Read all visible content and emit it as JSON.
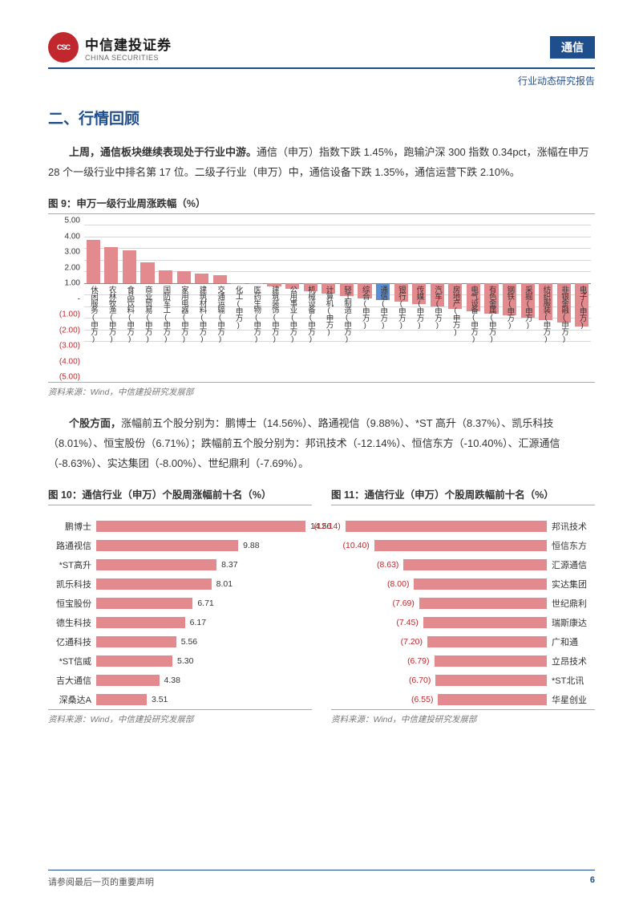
{
  "header": {
    "logo_cn": "中信建投证券",
    "logo_en": "CHINA SECURITIES",
    "tag": "通信",
    "subtitle": "行业动态研究报告"
  },
  "section_title": "二、行情回顾",
  "para1": {
    "bold": "上周，通信板块继续表现处于行业中游。",
    "rest": "通信（申万）指数下跌 1.45%，跑输沪深 300 指数 0.34pct，涨幅在申万 28 个一级行业中排名第 17 位。二级子行业（申万）中，通信设备下跌 1.35%，通信运营下跌 2.10%。"
  },
  "fig9": {
    "title": "图 9：申万一级行业周涨跌幅（%）",
    "source": "资料来源：Wind，中信建投研究发展部",
    "ymin": -5,
    "ymax": 5,
    "ystep": 1,
    "bar_color": "#e28a8e",
    "highlight_color": "#5a8fd6",
    "grid_color": "#d8d8d8",
    "yticks_pos": [
      "5.00",
      "4.00",
      "3.00",
      "2.00",
      "1.00",
      "-"
    ],
    "yticks_neg": [
      "(1.00)",
      "(2.00)",
      "(3.00)",
      "(4.00)",
      "(5.00)"
    ],
    "data": [
      {
        "label": "休闲服务(申万)",
        "v": 3.7,
        "hl": false
      },
      {
        "label": "农林牧渔(申万)",
        "v": 3.1,
        "hl": false
      },
      {
        "label": "食品饮料(申万)",
        "v": 2.8,
        "hl": false
      },
      {
        "label": "商业贸易(申万)",
        "v": 1.8,
        "hl": false
      },
      {
        "label": "国防军工(申万)",
        "v": 1.1,
        "hl": false
      },
      {
        "label": "家用电器(申万)",
        "v": 1.0,
        "hl": false
      },
      {
        "label": "建筑材料(申万)",
        "v": 0.8,
        "hl": false
      },
      {
        "label": "交通运输(申万)",
        "v": 0.7,
        "hl": false
      },
      {
        "label": "化工(申万)",
        "v": -0.05,
        "hl": false
      },
      {
        "label": "医药生物(申万)",
        "v": -0.1,
        "hl": false
      },
      {
        "label": "建筑装饰(申万)",
        "v": -0.3,
        "hl": false
      },
      {
        "label": "公用事业(申万)",
        "v": -0.5,
        "hl": false
      },
      {
        "label": "机械设备(申万)",
        "v": -0.7,
        "hl": false
      },
      {
        "label": "计算机(申万)",
        "v": -0.9,
        "hl": false
      },
      {
        "label": "轻工制造(申万)",
        "v": -1.1,
        "hl": false
      },
      {
        "label": "综合(申万)",
        "v": -1.3,
        "hl": false
      },
      {
        "label": "通信(申万)",
        "v": -1.45,
        "hl": true
      },
      {
        "label": "银行(申万)",
        "v": -1.6,
        "hl": false
      },
      {
        "label": "传媒(申万)",
        "v": -1.8,
        "hl": false
      },
      {
        "label": "汽车(申万)",
        "v": -2.0,
        "hl": false
      },
      {
        "label": "房地产(申万)",
        "v": -2.2,
        "hl": false
      },
      {
        "label": "电气设备(申万)",
        "v": -2.4,
        "hl": false
      },
      {
        "label": "有色金属(申万)",
        "v": -2.6,
        "hl": false
      },
      {
        "label": "钢铁(申万)",
        "v": -2.8,
        "hl": false
      },
      {
        "label": "采掘(申万)",
        "v": -3.0,
        "hl": false
      },
      {
        "label": "纺织服装(申万)",
        "v": -3.2,
        "hl": false
      },
      {
        "label": "非银金融(申万)",
        "v": -3.4,
        "hl": false
      },
      {
        "label": "电子(申万)",
        "v": -3.7,
        "hl": false
      }
    ]
  },
  "para2": {
    "bold": "个股方面，",
    "rest": "涨幅前五个股分别为：鹏博士（14.56%）、路通视信（9.88%）、*ST 高升（8.37%）、凯乐科技（8.01%）、恒宝股份（6.71%）；跌幅前五个股分别为：邦讯技术（-12.14%）、恒信东方（-10.40%）、汇源通信（-8.63%）、实达集团（-8.00%）、世纪鼎利（-7.69%）。"
  },
  "fig10": {
    "title": "图 10：通信行业（申万）个股周涨幅前十名（%）",
    "source": "资料来源：Wind，中信建投研究发展部",
    "max": 15,
    "bar_color": "#e28a8e",
    "data": [
      {
        "label": "鹏博士",
        "v": 14.56,
        "disp": "14.56"
      },
      {
        "label": "路通视信",
        "v": 9.88,
        "disp": "9.88"
      },
      {
        "label": "*ST高升",
        "v": 8.37,
        "disp": "8.37"
      },
      {
        "label": "凯乐科技",
        "v": 8.01,
        "disp": "8.01"
      },
      {
        "label": "恒宝股份",
        "v": 6.71,
        "disp": "6.71"
      },
      {
        "label": "德生科技",
        "v": 6.17,
        "disp": "6.17"
      },
      {
        "label": "亿通科技",
        "v": 5.56,
        "disp": "5.56"
      },
      {
        "label": "*ST信威",
        "v": 5.3,
        "disp": "5.30"
      },
      {
        "label": "吉大通信",
        "v": 4.38,
        "disp": "4.38"
      },
      {
        "label": "深桑达A",
        "v": 3.51,
        "disp": "3.51"
      }
    ]
  },
  "fig11": {
    "title": "图 11：通信行业（申万）个股周跌幅前十名（%）",
    "source": "资料来源：Wind，中信建投研究发展部",
    "max": 13,
    "bar_color": "#e28a8e",
    "data": [
      {
        "label": "邦讯技术",
        "v": 12.14,
        "disp": "(12.14)"
      },
      {
        "label": "恒信东方",
        "v": 10.4,
        "disp": "(10.40)"
      },
      {
        "label": "汇源通信",
        "v": 8.63,
        "disp": "(8.63)"
      },
      {
        "label": "实达集团",
        "v": 8.0,
        "disp": "(8.00)"
      },
      {
        "label": "世纪鼎利",
        "v": 7.69,
        "disp": "(7.69)"
      },
      {
        "label": "瑞斯康达",
        "v": 7.45,
        "disp": "(7.45)"
      },
      {
        "label": "广和通",
        "v": 7.2,
        "disp": "(7.20)"
      },
      {
        "label": "立昂技术",
        "v": 6.79,
        "disp": "(6.79)"
      },
      {
        "label": "*ST北讯",
        "v": 6.7,
        "disp": "(6.70)"
      },
      {
        "label": "华星创业",
        "v": 6.55,
        "disp": "(6.55)"
      }
    ]
  },
  "footer": {
    "disclaimer": "请参阅最后一页的重要声明",
    "page": "6"
  }
}
